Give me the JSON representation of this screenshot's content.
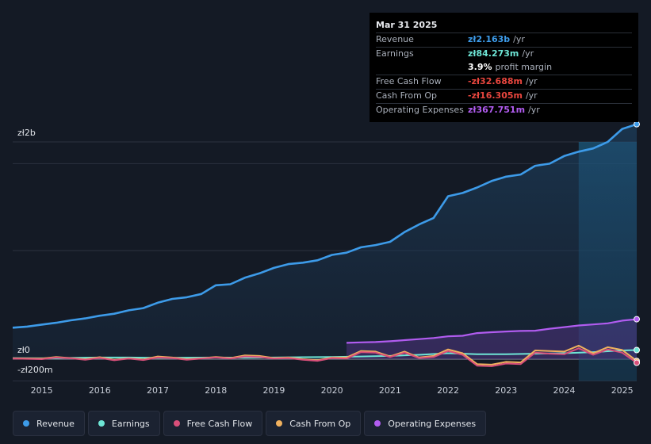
{
  "tooltip": {
    "date": "Mar 31 2025",
    "rows": [
      {
        "label": "Revenue",
        "value": "zł2.163b",
        "unit": "/yr",
        "color": "#3d9be9"
      },
      {
        "label": "Earnings",
        "value": "zł84.273m",
        "unit": "/yr",
        "color": "#6ee6d6"
      },
      {
        "label": "",
        "value": "3.9%",
        "unit": "profit margin",
        "color": "#ffffff"
      },
      {
        "label": "Free Cash Flow",
        "value": "-zł32.688m",
        "unit": "/yr",
        "color": "#e8463e"
      },
      {
        "label": "Cash From Op",
        "value": "-zł16.305m",
        "unit": "/yr",
        "color": "#e8463e"
      },
      {
        "label": "Operating Expenses",
        "value": "zł367.751m",
        "unit": "/yr",
        "color": "#b15cf0"
      }
    ]
  },
  "chart_data": {
    "type": "line",
    "title": "",
    "xlabel": "",
    "ylabel": "",
    "y_axis_labels": [
      "zł2b",
      "zł0",
      "-zł200m"
    ],
    "ylim": [
      -200,
      2200
    ],
    "xlim": [
      2014.5,
      2025.25
    ],
    "x_ticks": [
      "2015",
      "2016",
      "2017",
      "2018",
      "2019",
      "2020",
      "2021",
      "2022",
      "2023",
      "2024",
      "2025"
    ],
    "series": [
      {
        "name": "Revenue",
        "color": "#3d9be9",
        "fill": true,
        "points": [
          [
            2014.5,
            290
          ],
          [
            2014.75,
            300
          ],
          [
            2015.0,
            318
          ],
          [
            2015.25,
            335
          ],
          [
            2015.5,
            358
          ],
          [
            2015.75,
            375
          ],
          [
            2016.0,
            400
          ],
          [
            2016.25,
            418
          ],
          [
            2016.5,
            450
          ],
          [
            2016.75,
            470
          ],
          [
            2017.0,
            520
          ],
          [
            2017.25,
            555
          ],
          [
            2017.5,
            570
          ],
          [
            2017.75,
            600
          ],
          [
            2018.0,
            680
          ],
          [
            2018.25,
            690
          ],
          [
            2018.5,
            750
          ],
          [
            2018.75,
            790
          ],
          [
            2019.0,
            840
          ],
          [
            2019.25,
            875
          ],
          [
            2019.5,
            888
          ],
          [
            2019.75,
            910
          ],
          [
            2020.0,
            960
          ],
          [
            2020.25,
            980
          ],
          [
            2020.5,
            1030
          ],
          [
            2020.75,
            1050
          ],
          [
            2021.0,
            1080
          ],
          [
            2021.25,
            1170
          ],
          [
            2021.5,
            1240
          ],
          [
            2021.75,
            1300
          ],
          [
            2022.0,
            1500
          ],
          [
            2022.25,
            1530
          ],
          [
            2022.5,
            1580
          ],
          [
            2022.75,
            1640
          ],
          [
            2023.0,
            1680
          ],
          [
            2023.25,
            1700
          ],
          [
            2023.5,
            1780
          ],
          [
            2023.75,
            1800
          ],
          [
            2024.0,
            1870
          ],
          [
            2024.25,
            1910
          ],
          [
            2024.5,
            1940
          ],
          [
            2024.75,
            2000
          ],
          [
            2025.0,
            2120
          ],
          [
            2025.25,
            2163
          ]
        ]
      },
      {
        "name": "Earnings",
        "color": "#6ee6d6",
        "fill": false,
        "points": [
          [
            2014.5,
            10
          ],
          [
            2015.0,
            8
          ],
          [
            2015.5,
            12
          ],
          [
            2016.0,
            15
          ],
          [
            2016.5,
            15
          ],
          [
            2017.0,
            12
          ],
          [
            2017.5,
            14
          ],
          [
            2018.0,
            15
          ],
          [
            2018.5,
            14
          ],
          [
            2019.0,
            15
          ],
          [
            2019.5,
            18
          ],
          [
            2020.0,
            20
          ],
          [
            2020.5,
            25
          ],
          [
            2021.0,
            30
          ],
          [
            2021.5,
            40
          ],
          [
            2022.0,
            55
          ],
          [
            2022.5,
            45
          ],
          [
            2023.0,
            45
          ],
          [
            2023.5,
            50
          ],
          [
            2024.0,
            55
          ],
          [
            2024.5,
            65
          ],
          [
            2025.0,
            80
          ],
          [
            2025.25,
            84
          ]
        ]
      },
      {
        "name": "Free Cash Flow",
        "color": "#d94f7a",
        "fill": false,
        "points": [
          [
            2014.5,
            5
          ],
          [
            2015.0,
            0
          ],
          [
            2015.25,
            15
          ],
          [
            2015.5,
            8
          ],
          [
            2015.75,
            -5
          ],
          [
            2016.0,
            12
          ],
          [
            2016.25,
            -10
          ],
          [
            2016.5,
            5
          ],
          [
            2016.75,
            -8
          ],
          [
            2017.0,
            15
          ],
          [
            2017.25,
            10
          ],
          [
            2017.5,
            -5
          ],
          [
            2017.75,
            5
          ],
          [
            2018.0,
            15
          ],
          [
            2018.25,
            5
          ],
          [
            2018.5,
            25
          ],
          [
            2018.75,
            20
          ],
          [
            2019.0,
            5
          ],
          [
            2019.25,
            10
          ],
          [
            2019.5,
            -5
          ],
          [
            2019.75,
            -15
          ],
          [
            2020.0,
            10
          ],
          [
            2020.25,
            5
          ],
          [
            2020.5,
            65
          ],
          [
            2020.75,
            60
          ],
          [
            2021.0,
            20
          ],
          [
            2021.25,
            60
          ],
          [
            2021.5,
            10
          ],
          [
            2021.75,
            20
          ],
          [
            2022.0,
            75
          ],
          [
            2022.25,
            40
          ],
          [
            2022.5,
            -60
          ],
          [
            2022.75,
            -65
          ],
          [
            2023.0,
            -40
          ],
          [
            2023.25,
            -45
          ],
          [
            2023.5,
            60
          ],
          [
            2023.75,
            50
          ],
          [
            2024.0,
            45
          ],
          [
            2024.25,
            100
          ],
          [
            2024.5,
            40
          ],
          [
            2024.75,
            90
          ],
          [
            2025.0,
            60
          ],
          [
            2025.25,
            -33
          ]
        ]
      },
      {
        "name": "Cash From Op",
        "color": "#f0b15e",
        "fill": false,
        "points": [
          [
            2014.5,
            8
          ],
          [
            2015.0,
            5
          ],
          [
            2015.25,
            20
          ],
          [
            2015.5,
            10
          ],
          [
            2015.75,
            0
          ],
          [
            2016.0,
            18
          ],
          [
            2016.25,
            -5
          ],
          [
            2016.5,
            8
          ],
          [
            2016.75,
            -3
          ],
          [
            2017.0,
            25
          ],
          [
            2017.25,
            15
          ],
          [
            2017.5,
            0
          ],
          [
            2017.75,
            8
          ],
          [
            2018.0,
            20
          ],
          [
            2018.25,
            10
          ],
          [
            2018.5,
            35
          ],
          [
            2018.75,
            30
          ],
          [
            2019.0,
            10
          ],
          [
            2019.25,
            15
          ],
          [
            2019.5,
            0
          ],
          [
            2019.75,
            -10
          ],
          [
            2020.0,
            15
          ],
          [
            2020.25,
            15
          ],
          [
            2020.5,
            75
          ],
          [
            2020.75,
            70
          ],
          [
            2021.0,
            25
          ],
          [
            2021.25,
            70
          ],
          [
            2021.5,
            15
          ],
          [
            2021.75,
            30
          ],
          [
            2022.0,
            90
          ],
          [
            2022.25,
            55
          ],
          [
            2022.5,
            -45
          ],
          [
            2022.75,
            -50
          ],
          [
            2023.0,
            -25
          ],
          [
            2023.25,
            -30
          ],
          [
            2023.5,
            80
          ],
          [
            2023.75,
            75
          ],
          [
            2024.0,
            70
          ],
          [
            2024.25,
            125
          ],
          [
            2024.5,
            55
          ],
          [
            2024.75,
            110
          ],
          [
            2025.0,
            85
          ],
          [
            2025.25,
            -16
          ]
        ]
      },
      {
        "name": "Operating Expenses",
        "color": "#b15cf0",
        "fill": true,
        "points": [
          [
            2020.25,
            150
          ],
          [
            2020.5,
            155
          ],
          [
            2020.75,
            158
          ],
          [
            2021.0,
            165
          ],
          [
            2021.25,
            175
          ],
          [
            2021.5,
            185
          ],
          [
            2021.75,
            195
          ],
          [
            2022.0,
            210
          ],
          [
            2022.25,
            215
          ],
          [
            2022.5,
            240
          ],
          [
            2022.75,
            248
          ],
          [
            2023.0,
            255
          ],
          [
            2023.25,
            260
          ],
          [
            2023.5,
            262
          ],
          [
            2023.75,
            280
          ],
          [
            2024.0,
            295
          ],
          [
            2024.25,
            310
          ],
          [
            2024.5,
            320
          ],
          [
            2024.75,
            330
          ],
          [
            2025.0,
            355
          ],
          [
            2025.25,
            368
          ]
        ]
      }
    ]
  },
  "legend": [
    {
      "label": "Revenue",
      "color": "#3d9be9"
    },
    {
      "label": "Earnings",
      "color": "#6ee6d6"
    },
    {
      "label": "Free Cash Flow",
      "color": "#d94f7a"
    },
    {
      "label": "Cash From Op",
      "color": "#f0b15e"
    },
    {
      "label": "Operating Expenses",
      "color": "#b15cf0"
    }
  ]
}
